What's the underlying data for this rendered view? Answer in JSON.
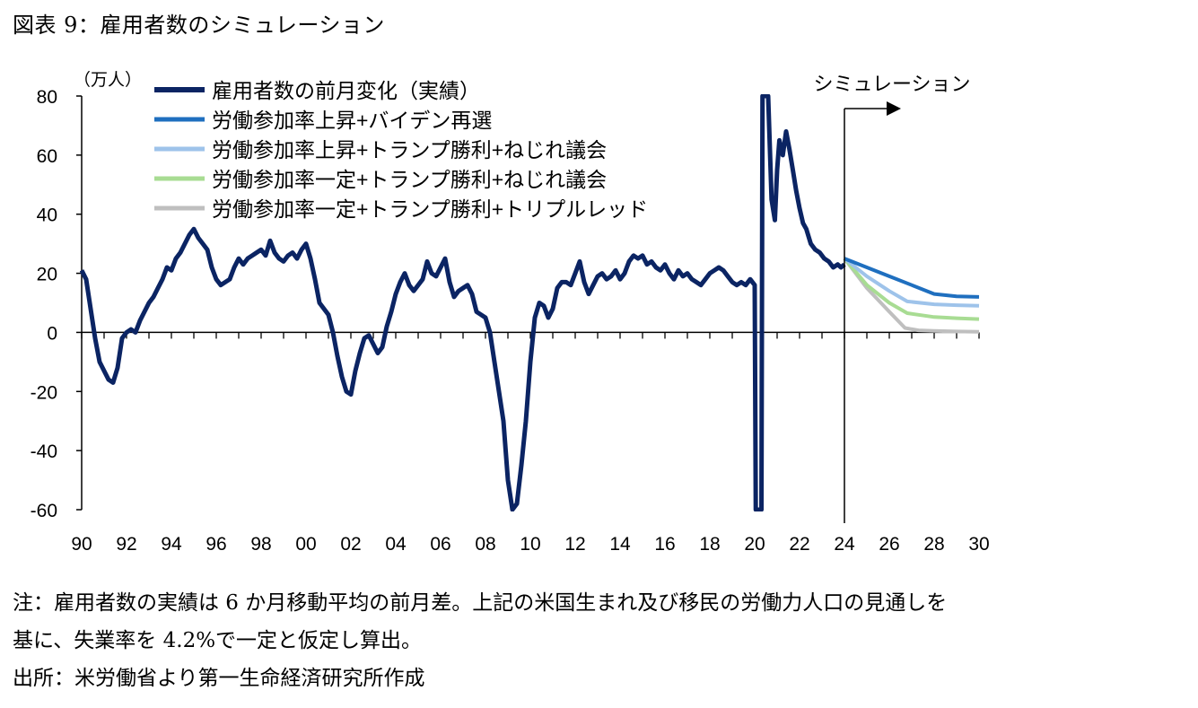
{
  "title": "図表 9：雇用者数のシミュレーション",
  "notes": [
    "注：雇用者数の実績は 6 か月移動平均の前月差。上記の米国生まれ及び移民の労働力人口の見通しを",
    "基に、失業率を 4.2%で一定と仮定し算出。",
    "出所：米労働省より第一生命経済研究所作成"
  ],
  "chart_data": {
    "type": "line",
    "ylabel": "（万人）",
    "ylim": [
      -60,
      80
    ],
    "yticks": [
      -60,
      -40,
      -20,
      0,
      20,
      40,
      60,
      80
    ],
    "xlim": [
      1990,
      2030
    ],
    "xticks": [
      "90",
      "92",
      "94",
      "96",
      "98",
      "00",
      "02",
      "04",
      "06",
      "08",
      "10",
      "12",
      "14",
      "16",
      "18",
      "20",
      "22",
      "24",
      "26",
      "28",
      "30"
    ],
    "annotation": "シミュレーション",
    "simulation_start": 2024,
    "series": [
      {
        "name": "雇用者数の前月変化（実績）",
        "color": "#0b2463",
        "points": [
          [
            1990.0,
            21
          ],
          [
            1990.2,
            18
          ],
          [
            1990.4,
            8
          ],
          [
            1990.6,
            -2
          ],
          [
            1990.8,
            -10
          ],
          [
            1991.0,
            -13
          ],
          [
            1991.2,
            -16
          ],
          [
            1991.4,
            -17
          ],
          [
            1991.6,
            -12
          ],
          [
            1991.8,
            -2
          ],
          [
            1992.0,
            0
          ],
          [
            1992.2,
            1
          ],
          [
            1992.4,
            0
          ],
          [
            1992.6,
            4
          ],
          [
            1992.8,
            7
          ],
          [
            1993.0,
            10
          ],
          [
            1993.2,
            12
          ],
          [
            1993.4,
            15
          ],
          [
            1993.6,
            18
          ],
          [
            1993.8,
            22
          ],
          [
            1994.0,
            21
          ],
          [
            1994.2,
            25
          ],
          [
            1994.4,
            27
          ],
          [
            1994.6,
            30
          ],
          [
            1994.8,
            33
          ],
          [
            1995.0,
            35
          ],
          [
            1995.2,
            32
          ],
          [
            1995.4,
            30
          ],
          [
            1995.6,
            28
          ],
          [
            1995.8,
            22
          ],
          [
            1996.0,
            18
          ],
          [
            1996.2,
            16
          ],
          [
            1996.4,
            17
          ],
          [
            1996.6,
            18
          ],
          [
            1996.8,
            22
          ],
          [
            1997.0,
            25
          ],
          [
            1997.2,
            23
          ],
          [
            1997.4,
            25
          ],
          [
            1997.6,
            26
          ],
          [
            1997.8,
            27
          ],
          [
            1998.0,
            28
          ],
          [
            1998.2,
            26
          ],
          [
            1998.4,
            31
          ],
          [
            1998.6,
            27
          ],
          [
            1998.8,
            25
          ],
          [
            1999.0,
            24
          ],
          [
            1999.2,
            26
          ],
          [
            1999.4,
            27
          ],
          [
            1999.6,
            25
          ],
          [
            1999.8,
            28
          ],
          [
            2000.0,
            30
          ],
          [
            2000.2,
            25
          ],
          [
            2000.4,
            18
          ],
          [
            2000.6,
            10
          ],
          [
            2000.8,
            8
          ],
          [
            2001.0,
            6
          ],
          [
            2001.2,
            0
          ],
          [
            2001.4,
            -8
          ],
          [
            2001.6,
            -15
          ],
          [
            2001.8,
            -20
          ],
          [
            2002.0,
            -21
          ],
          [
            2002.2,
            -13
          ],
          [
            2002.4,
            -7
          ],
          [
            2002.6,
            -2
          ],
          [
            2002.8,
            -1
          ],
          [
            2003.0,
            -4
          ],
          [
            2003.2,
            -7
          ],
          [
            2003.4,
            -5
          ],
          [
            2003.6,
            2
          ],
          [
            2003.8,
            7
          ],
          [
            2004.0,
            13
          ],
          [
            2004.2,
            17
          ],
          [
            2004.4,
            20
          ],
          [
            2004.6,
            16
          ],
          [
            2004.8,
            14
          ],
          [
            2005.0,
            16
          ],
          [
            2005.2,
            18
          ],
          [
            2005.4,
            24
          ],
          [
            2005.6,
            20
          ],
          [
            2005.8,
            19
          ],
          [
            2006.0,
            22
          ],
          [
            2006.2,
            25
          ],
          [
            2006.4,
            17
          ],
          [
            2006.6,
            12
          ],
          [
            2006.8,
            14
          ],
          [
            2007.0,
            15
          ],
          [
            2007.2,
            16
          ],
          [
            2007.4,
            13
          ],
          [
            2007.6,
            7
          ],
          [
            2007.8,
            6
          ],
          [
            2008.0,
            5
          ],
          [
            2008.2,
            0
          ],
          [
            2008.4,
            -10
          ],
          [
            2008.6,
            -20
          ],
          [
            2008.8,
            -30
          ],
          [
            2009.0,
            -50
          ],
          [
            2009.2,
            -60
          ],
          [
            2009.4,
            -58
          ],
          [
            2009.6,
            -45
          ],
          [
            2009.8,
            -30
          ],
          [
            2010.0,
            -10
          ],
          [
            2010.2,
            5
          ],
          [
            2010.4,
            10
          ],
          [
            2010.6,
            9
          ],
          [
            2010.8,
            5
          ],
          [
            2011.0,
            8
          ],
          [
            2011.2,
            15
          ],
          [
            2011.4,
            17
          ],
          [
            2011.6,
            17
          ],
          [
            2011.8,
            16
          ],
          [
            2012.0,
            20
          ],
          [
            2012.2,
            24
          ],
          [
            2012.4,
            17
          ],
          [
            2012.6,
            13
          ],
          [
            2012.8,
            16
          ],
          [
            2013.0,
            19
          ],
          [
            2013.2,
            20
          ],
          [
            2013.4,
            18
          ],
          [
            2013.6,
            19
          ],
          [
            2013.8,
            21
          ],
          [
            2014.0,
            18
          ],
          [
            2014.2,
            20
          ],
          [
            2014.4,
            24
          ],
          [
            2014.6,
            26
          ],
          [
            2014.8,
            25
          ],
          [
            2015.0,
            26
          ],
          [
            2015.2,
            23
          ],
          [
            2015.4,
            24
          ],
          [
            2015.6,
            22
          ],
          [
            2015.8,
            21
          ],
          [
            2016.0,
            23
          ],
          [
            2016.2,
            20
          ],
          [
            2016.4,
            18
          ],
          [
            2016.6,
            21
          ],
          [
            2016.8,
            19
          ],
          [
            2017.0,
            20
          ],
          [
            2017.2,
            18
          ],
          [
            2017.4,
            17
          ],
          [
            2017.6,
            16
          ],
          [
            2017.8,
            18
          ],
          [
            2018.0,
            20
          ],
          [
            2018.2,
            21
          ],
          [
            2018.4,
            22
          ],
          [
            2018.6,
            21
          ],
          [
            2018.8,
            19
          ],
          [
            2019.0,
            17
          ],
          [
            2019.2,
            16
          ],
          [
            2019.4,
            17
          ],
          [
            2019.6,
            16
          ],
          [
            2019.8,
            18
          ],
          [
            2020.0,
            16
          ],
          [
            2020.05,
            -60
          ],
          [
            2020.3,
            -60
          ],
          [
            2020.35,
            80
          ],
          [
            2020.6,
            80
          ],
          [
            2020.75,
            45
          ],
          [
            2020.9,
            38
          ],
          [
            2021.0,
            55
          ],
          [
            2021.1,
            65
          ],
          [
            2021.25,
            60
          ],
          [
            2021.4,
            68
          ],
          [
            2021.55,
            62
          ],
          [
            2021.7,
            55
          ],
          [
            2021.85,
            48
          ],
          [
            2022.0,
            42
          ],
          [
            2022.15,
            37
          ],
          [
            2022.3,
            35
          ],
          [
            2022.5,
            30
          ],
          [
            2022.7,
            28
          ],
          [
            2022.9,
            27
          ],
          [
            2023.1,
            25
          ],
          [
            2023.3,
            24
          ],
          [
            2023.5,
            22
          ],
          [
            2023.7,
            23
          ],
          [
            2023.85,
            22
          ],
          [
            2024.0,
            23
          ]
        ]
      },
      {
        "name": "労働参加率上昇+バイデン再選",
        "color": "#1f6fbf",
        "points": [
          [
            2024.0,
            25
          ],
          [
            2025.0,
            22
          ],
          [
            2026.0,
            19
          ],
          [
            2027.0,
            16
          ],
          [
            2028.0,
            13
          ],
          [
            2029.0,
            12.2
          ],
          [
            2030.0,
            12
          ]
        ]
      },
      {
        "name": "労働参加率上昇+トランプ勝利+ねじれ議会",
        "color": "#9ec3ea",
        "points": [
          [
            2024.0,
            25
          ],
          [
            2025.0,
            19
          ],
          [
            2026.0,
            14
          ],
          [
            2026.8,
            10.5
          ],
          [
            2028.0,
            9.5
          ],
          [
            2029.0,
            9.2
          ],
          [
            2030.0,
            9
          ]
        ]
      },
      {
        "name": "労働参加率一定+トランプ勝利+ねじれ議会",
        "color": "#a8dc93",
        "points": [
          [
            2024.0,
            25
          ],
          [
            2025.0,
            16
          ],
          [
            2026.0,
            10
          ],
          [
            2026.8,
            6.5
          ],
          [
            2028.0,
            5.2
          ],
          [
            2029.0,
            4.8
          ],
          [
            2030.0,
            4.5
          ]
        ]
      },
      {
        "name": "労働参加率一定+トランプ勝利+トリプルレッド",
        "color": "#bfbfbf",
        "points": [
          [
            2024.0,
            25
          ],
          [
            2025.0,
            15
          ],
          [
            2026.0,
            7
          ],
          [
            2026.7,
            1.5
          ],
          [
            2027.3,
            0.7
          ],
          [
            2028.0,
            0.5
          ],
          [
            2029.0,
            0.3
          ],
          [
            2030.0,
            0.2
          ]
        ]
      }
    ]
  }
}
